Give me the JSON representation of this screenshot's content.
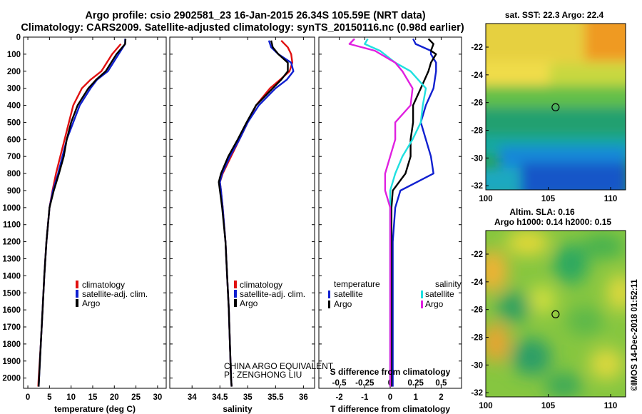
{
  "title": {
    "line1": "Argo profile: csio 2902581_23 16-Jan-2015 26.34S 105.59E (NRT data)",
    "line2": "Climatology: CARS2009. Satellite-adjusted climatology: synTS_20150116.nc (0.98d earlier)"
  },
  "colors": {
    "climatology": "#e01010",
    "satellite": "#1020d0",
    "argo": "#000000",
    "sal_satellite": "#20e0e0",
    "sal_argo": "#e020e0"
  },
  "depth_ticks": [
    0,
    100,
    200,
    300,
    400,
    500,
    600,
    700,
    800,
    900,
    1000,
    1100,
    1200,
    1300,
    1400,
    1500,
    1600,
    1700,
    1800,
    1900,
    2000
  ],
  "credit": {
    "line1": "CHINA ARGO EQUIVALENT",
    "line2": "PI: ZENGHONG LIU"
  },
  "imos_stamp": "©IMOS 14-Dec-2018 01:52:11",
  "chart_data": [
    {
      "type": "line",
      "name": "temperature",
      "xlabel": "temperature (deg C)",
      "ylabel": "depth",
      "xlim": [
        -1,
        32
      ],
      "ylim": [
        2060,
        0
      ],
      "xticks": [
        0,
        5,
        10,
        15,
        20,
        25,
        30
      ],
      "legend": [
        "climatology",
        "satellite-adj. clim.",
        "Argo"
      ],
      "series": [
        {
          "name": "climatology",
          "depth": [
            40,
            100,
            200,
            250,
            300,
            400,
            500,
            600,
            700,
            800,
            900,
            1000,
            1200,
            1400,
            1600,
            1800,
            2000,
            2050
          ],
          "values": [
            21.5,
            19.5,
            17,
            14.5,
            12.5,
            10.5,
            9.5,
            8.5,
            7.5,
            6.5,
            5.7,
            5.0,
            4.3,
            3.8,
            3.4,
            3.0,
            2.5,
            2.4
          ]
        },
        {
          "name": "satellite-adj. clim.",
          "depth": [
            10,
            40,
            100,
            200,
            250,
            300,
            400,
            500,
            600,
            700,
            800,
            900,
            1000,
            1200,
            1400,
            1600,
            1800,
            2000,
            2050
          ],
          "values": [
            22.5,
            22.5,
            21,
            18.5,
            16,
            14.5,
            12,
            10.5,
            9,
            8,
            7,
            5.8,
            5.0,
            4.3,
            3.8,
            3.4,
            3.0,
            2.6,
            2.5
          ]
        },
        {
          "name": "Argo",
          "depth": [
            10,
            40,
            100,
            200,
            250,
            300,
            400,
            500,
            600,
            700,
            800,
            900,
            1000,
            1200,
            1400,
            1600,
            1800,
            2000,
            2050
          ],
          "values": [
            22.6,
            22.5,
            20.5,
            18,
            15.8,
            14,
            11.5,
            10,
            9,
            8.3,
            7.2,
            6.0,
            5.0,
            4.3,
            3.8,
            3.4,
            3.0,
            2.6,
            2.5
          ]
        }
      ]
    },
    {
      "type": "line",
      "name": "salinity",
      "xlabel": "salinity",
      "ylabel": "depth",
      "xlim": [
        33.6,
        36.2
      ],
      "ylim": [
        2060,
        0
      ],
      "xticks": [
        34,
        34.5,
        35,
        35.5,
        36
      ],
      "xtick_labels": [
        "34",
        "34.5",
        "35",
        "35.5",
        "36"
      ],
      "legend": [
        "climatology",
        "satellite-adj. clim.",
        "Argo"
      ],
      "series": [
        {
          "name": "climatology",
          "depth": [
            20,
            60,
            100,
            150,
            200,
            250,
            300,
            400,
            500,
            600,
            700,
            800,
            850,
            900,
            1000,
            1200,
            1400,
            1600,
            1800,
            2000,
            2050
          ],
          "values": [
            35.6,
            35.72,
            35.78,
            35.8,
            35.75,
            35.58,
            35.4,
            35.15,
            35.0,
            34.85,
            34.7,
            34.55,
            34.5,
            34.52,
            34.55,
            34.6,
            34.63,
            34.66,
            34.68,
            34.7,
            34.71
          ]
        },
        {
          "name": "satellite-adj. clim.",
          "depth": [
            20,
            60,
            100,
            150,
            200,
            250,
            300,
            400,
            500,
            600,
            700,
            800,
            850,
            900,
            1000,
            1200,
            1400,
            1600,
            1800,
            2000,
            2050
          ],
          "values": [
            35.38,
            35.42,
            35.55,
            35.78,
            35.82,
            35.7,
            35.5,
            35.2,
            35.0,
            34.85,
            34.68,
            34.54,
            34.5,
            34.52,
            34.55,
            34.6,
            34.63,
            34.66,
            34.68,
            34.7,
            34.71
          ]
        },
        {
          "name": "Argo",
          "depth": [
            20,
            60,
            100,
            150,
            200,
            250,
            300,
            400,
            500,
            600,
            700,
            800,
            850,
            900,
            1000,
            1200,
            1400,
            1600,
            1800,
            2000,
            2050
          ],
          "values": [
            35.42,
            35.45,
            35.55,
            35.72,
            35.72,
            35.6,
            35.45,
            35.15,
            34.98,
            34.82,
            34.65,
            34.52,
            34.48,
            34.5,
            34.54,
            34.6,
            34.63,
            34.66,
            34.68,
            34.7,
            34.71
          ]
        }
      ]
    },
    {
      "type": "line",
      "name": "difference",
      "xlabel": "T difference from climatology",
      "xlabel_top": "S difference from climatology",
      "xlim": [
        -2.8,
        2.8
      ],
      "ylim": [
        2060,
        0
      ],
      "xticks": [
        -2,
        -1,
        0,
        1,
        2
      ],
      "sticks": [
        -0.5,
        -0.25,
        0,
        0.25,
        0.5
      ],
      "stick_labels": [
        "-0.5",
        "-0.25",
        "0",
        "0.25",
        "0.5"
      ],
      "legend_left_title": "temperature",
      "legend_right_title": "salinity",
      "legend_left": [
        "satellite",
        "Argo"
      ],
      "legend_right": [
        "satellite",
        "Argo"
      ],
      "series": [
        {
          "name": "T satellite",
          "depth": [
            10,
            40,
            80,
            100,
            150,
            200,
            300,
            400,
            500,
            600,
            700,
            800,
            900,
            1000,
            1200,
            1400,
            1600,
            1800,
            2000,
            2050
          ],
          "values": [
            0.9,
            1.0,
            1.6,
            1.6,
            1.8,
            1.8,
            1.7,
            1.4,
            1.2,
            1.4,
            1.6,
            1.7,
            0.4,
            0.2,
            0.1,
            0.1,
            0.1,
            0.1,
            0.1,
            0.1
          ]
        },
        {
          "name": "T Argo",
          "depth": [
            10,
            40,
            80,
            100,
            150,
            200,
            300,
            400,
            500,
            600,
            700,
            800,
            900,
            1000,
            1200,
            1400,
            1600,
            1800,
            2000,
            2050
          ],
          "values": [
            1.5,
            1.7,
            1.6,
            1.8,
            1.6,
            1.5,
            1.2,
            0.9,
            0.9,
            0.8,
            0.8,
            0.6,
            0.1,
            0.05,
            0.05,
            0.05,
            0.05,
            0.05,
            0.05,
            0.05
          ]
        },
        {
          "name": "S satellite",
          "depth": [
            10,
            40,
            80,
            150,
            200,
            300,
            400,
            500,
            600,
            700,
            800,
            900,
            1000,
            1200,
            1400,
            1600,
            1800,
            2000,
            2050
          ],
          "values": [
            -0.22,
            -0.25,
            -0.1,
            0.05,
            0.2,
            0.35,
            0.32,
            0.3,
            0.22,
            0.12,
            0.05,
            0.0,
            0.0,
            0.0,
            0.0,
            0.0,
            0.0,
            0.0,
            0.0
          ]
        },
        {
          "name": "S Argo",
          "depth": [
            10,
            40,
            80,
            150,
            200,
            300,
            400,
            500,
            600,
            700,
            800,
            900,
            1000,
            1200,
            1400,
            1600,
            1800,
            2000,
            2050
          ],
          "values": [
            -0.35,
            -0.4,
            -0.15,
            0.05,
            0.12,
            0.22,
            0.2,
            0.05,
            0.05,
            0.0,
            -0.05,
            -0.05,
            0.0,
            0.0,
            0.0,
            0.0,
            0.0,
            0.0,
            0.0
          ]
        }
      ]
    },
    {
      "type": "heatmap",
      "name": "sst-map",
      "title": "sat. SST: 22.3 Argo: 22.4",
      "xticks": [
        100,
        105,
        110
      ],
      "yticks": [
        -22,
        -24,
        -26,
        -28,
        -30,
        -32
      ],
      "xlim": [
        100,
        111.2
      ],
      "ylim": [
        -32.3,
        -20.3
      ],
      "marker": {
        "lon": 105.59,
        "lat": -26.34
      }
    },
    {
      "type": "heatmap",
      "name": "sla-map",
      "title_line1": "Altim. SLA: 0.16",
      "title_line2": "Argo h1000: 0.14 h2000: 0.15",
      "xticks": [
        100,
        105,
        110
      ],
      "yticks": [
        -22,
        -24,
        -26,
        -28,
        -30,
        -32
      ],
      "xlim": [
        100,
        111.2
      ],
      "ylim": [
        -32.3,
        -20.3
      ],
      "marker": {
        "lon": 105.59,
        "lat": -26.34
      }
    }
  ]
}
